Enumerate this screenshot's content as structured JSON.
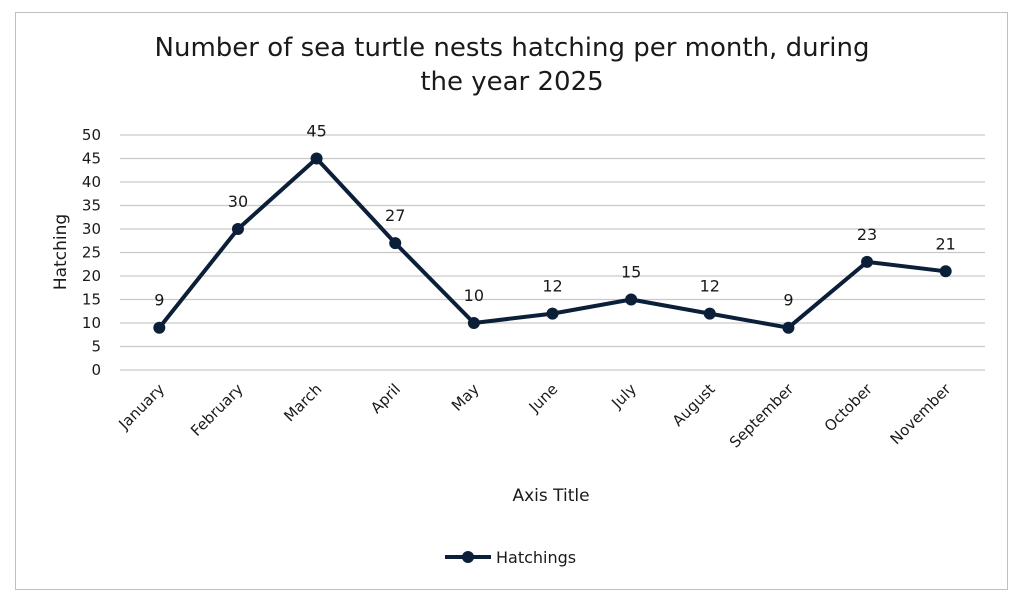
{
  "chart_data": {
    "type": "line",
    "title_lines": [
      "Number of sea turtle nests hatching per month, during",
      "the year 2025"
    ],
    "categories": [
      "January",
      "February",
      "March",
      "April",
      "May",
      "June",
      "July",
      "August",
      "September",
      "October",
      "November"
    ],
    "series": [
      {
        "name": "Hatchings",
        "values": [
          9,
          30,
          45,
          27,
          10,
          12,
          15,
          12,
          9,
          23,
          21
        ]
      }
    ],
    "xlabel": "Axis Title",
    "ylabel": "Hatching",
    "ylim": [
      0,
      50
    ],
    "yticks": [
      0,
      5,
      10,
      15,
      20,
      25,
      30,
      35,
      40,
      45,
      50
    ],
    "data_labels": true,
    "grid": true,
    "legend": "bottom",
    "colors": {
      "series": "#0b1f38",
      "grid": "#c9c9c9",
      "text": "#1a1a1a"
    }
  }
}
